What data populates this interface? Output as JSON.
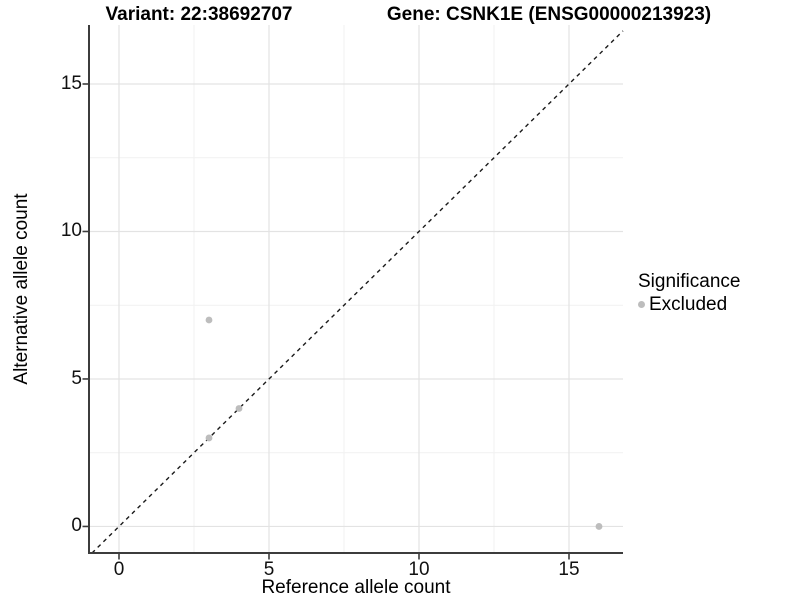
{
  "titles": {
    "variant": "Variant: 22:38692707",
    "gene": "Gene: CSNK1E (ENSG00000213923)"
  },
  "axes": {
    "x": {
      "label": "Reference allele count",
      "tick_labels": [
        "0",
        "5",
        "10",
        "15"
      ]
    },
    "y": {
      "label": "Alternative allele count",
      "tick_labels": [
        "0",
        "5",
        "10",
        "15"
      ]
    }
  },
  "legend": {
    "title": "Significance",
    "items": [
      {
        "label": "Excluded",
        "color": "#bdbdbd"
      }
    ]
  },
  "colors": {
    "point_excluded": "#bdbdbd",
    "grid_major": "#e3e3e3",
    "grid_minor": "#f1f1f1",
    "axis_line": "#3c3c3c",
    "reference_line": "#1a1a1a",
    "background": "#ffffff"
  },
  "chart_data": {
    "type": "scatter",
    "title_left": "Variant: 22:38692707",
    "title_right": "Gene: CSNK1E (ENSG00000213923)",
    "xlabel": "Reference allele count",
    "ylabel": "Alternative allele count",
    "xlim": [
      -1,
      16.8
    ],
    "ylim": [
      -0.9,
      17.0
    ],
    "x_major_ticks": [
      0,
      5,
      10,
      15
    ],
    "y_major_ticks": [
      0,
      5,
      10,
      15
    ],
    "x_minor_ticks": [
      2.5,
      7.5,
      12.5
    ],
    "y_minor_ticks": [
      2.5,
      7.5,
      12.5
    ],
    "grid": true,
    "legend_title": "Significance",
    "legend_position": "right",
    "series": [
      {
        "name": "Excluded",
        "color": "#bdbdbd",
        "points": [
          {
            "x": 3,
            "y": 7
          },
          {
            "x": 3,
            "y": 3
          },
          {
            "x": 4,
            "y": 4
          },
          {
            "x": 16,
            "y": 0
          }
        ]
      }
    ],
    "reference_line": {
      "slope": 1,
      "intercept": 0,
      "style": "dashed"
    }
  }
}
